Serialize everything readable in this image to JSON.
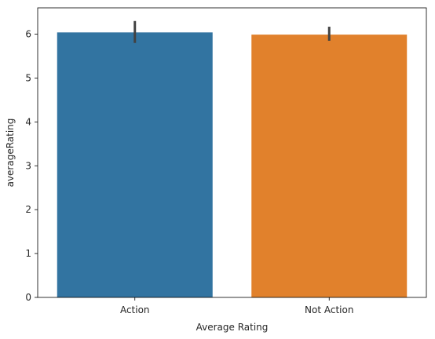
{
  "chart_data": {
    "type": "bar",
    "title": "",
    "xlabel": "Average Rating",
    "ylabel": "averageRating",
    "categories": [
      "Action",
      "Not Action"
    ],
    "values": [
      6.04,
      5.99
    ],
    "error_low": [
      5.8,
      5.85
    ],
    "error_high": [
      6.3,
      6.17
    ],
    "colors": [
      "#3274a1",
      "#e1812c"
    ],
    "ylim": [
      0,
      6.6
    ],
    "yticks": [
      0,
      1,
      2,
      3,
      4,
      5,
      6
    ],
    "grid": false,
    "legend": "none"
  }
}
